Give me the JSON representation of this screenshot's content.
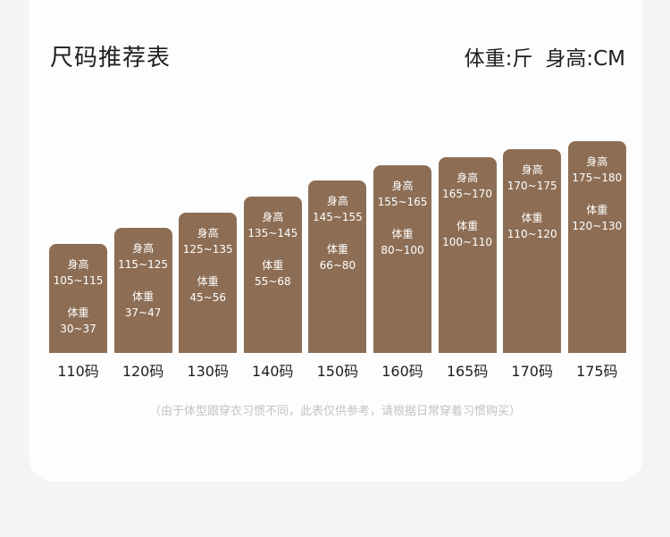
{
  "title": "尺码推荐表",
  "units": {
    "weight": "体重:斤",
    "height": "身高:CM"
  },
  "height_label": "身高",
  "weight_label": "体重",
  "chart_data": {
    "type": "bar",
    "categories": [
      "110码",
      "120码",
      "130码",
      "140码",
      "150码",
      "160码",
      "165码",
      "170码",
      "175码"
    ],
    "heights": [
      "105~115",
      "115~125",
      "125~135",
      "135~145",
      "145~155",
      "155~165",
      "165~170",
      "170~175",
      "175~180"
    ],
    "weights": [
      "30~37",
      "37~47",
      "45~56",
      "55~68",
      "66~80",
      "80~100",
      "100~110",
      "110~120",
      "120~130"
    ],
    "values": [
      115,
      125,
      135,
      145,
      155,
      165,
      170,
      175,
      180
    ]
  },
  "note": "（由于体型跟穿衣习惯不同，此表仅供参考，请根据日常穿着习惯购买）"
}
